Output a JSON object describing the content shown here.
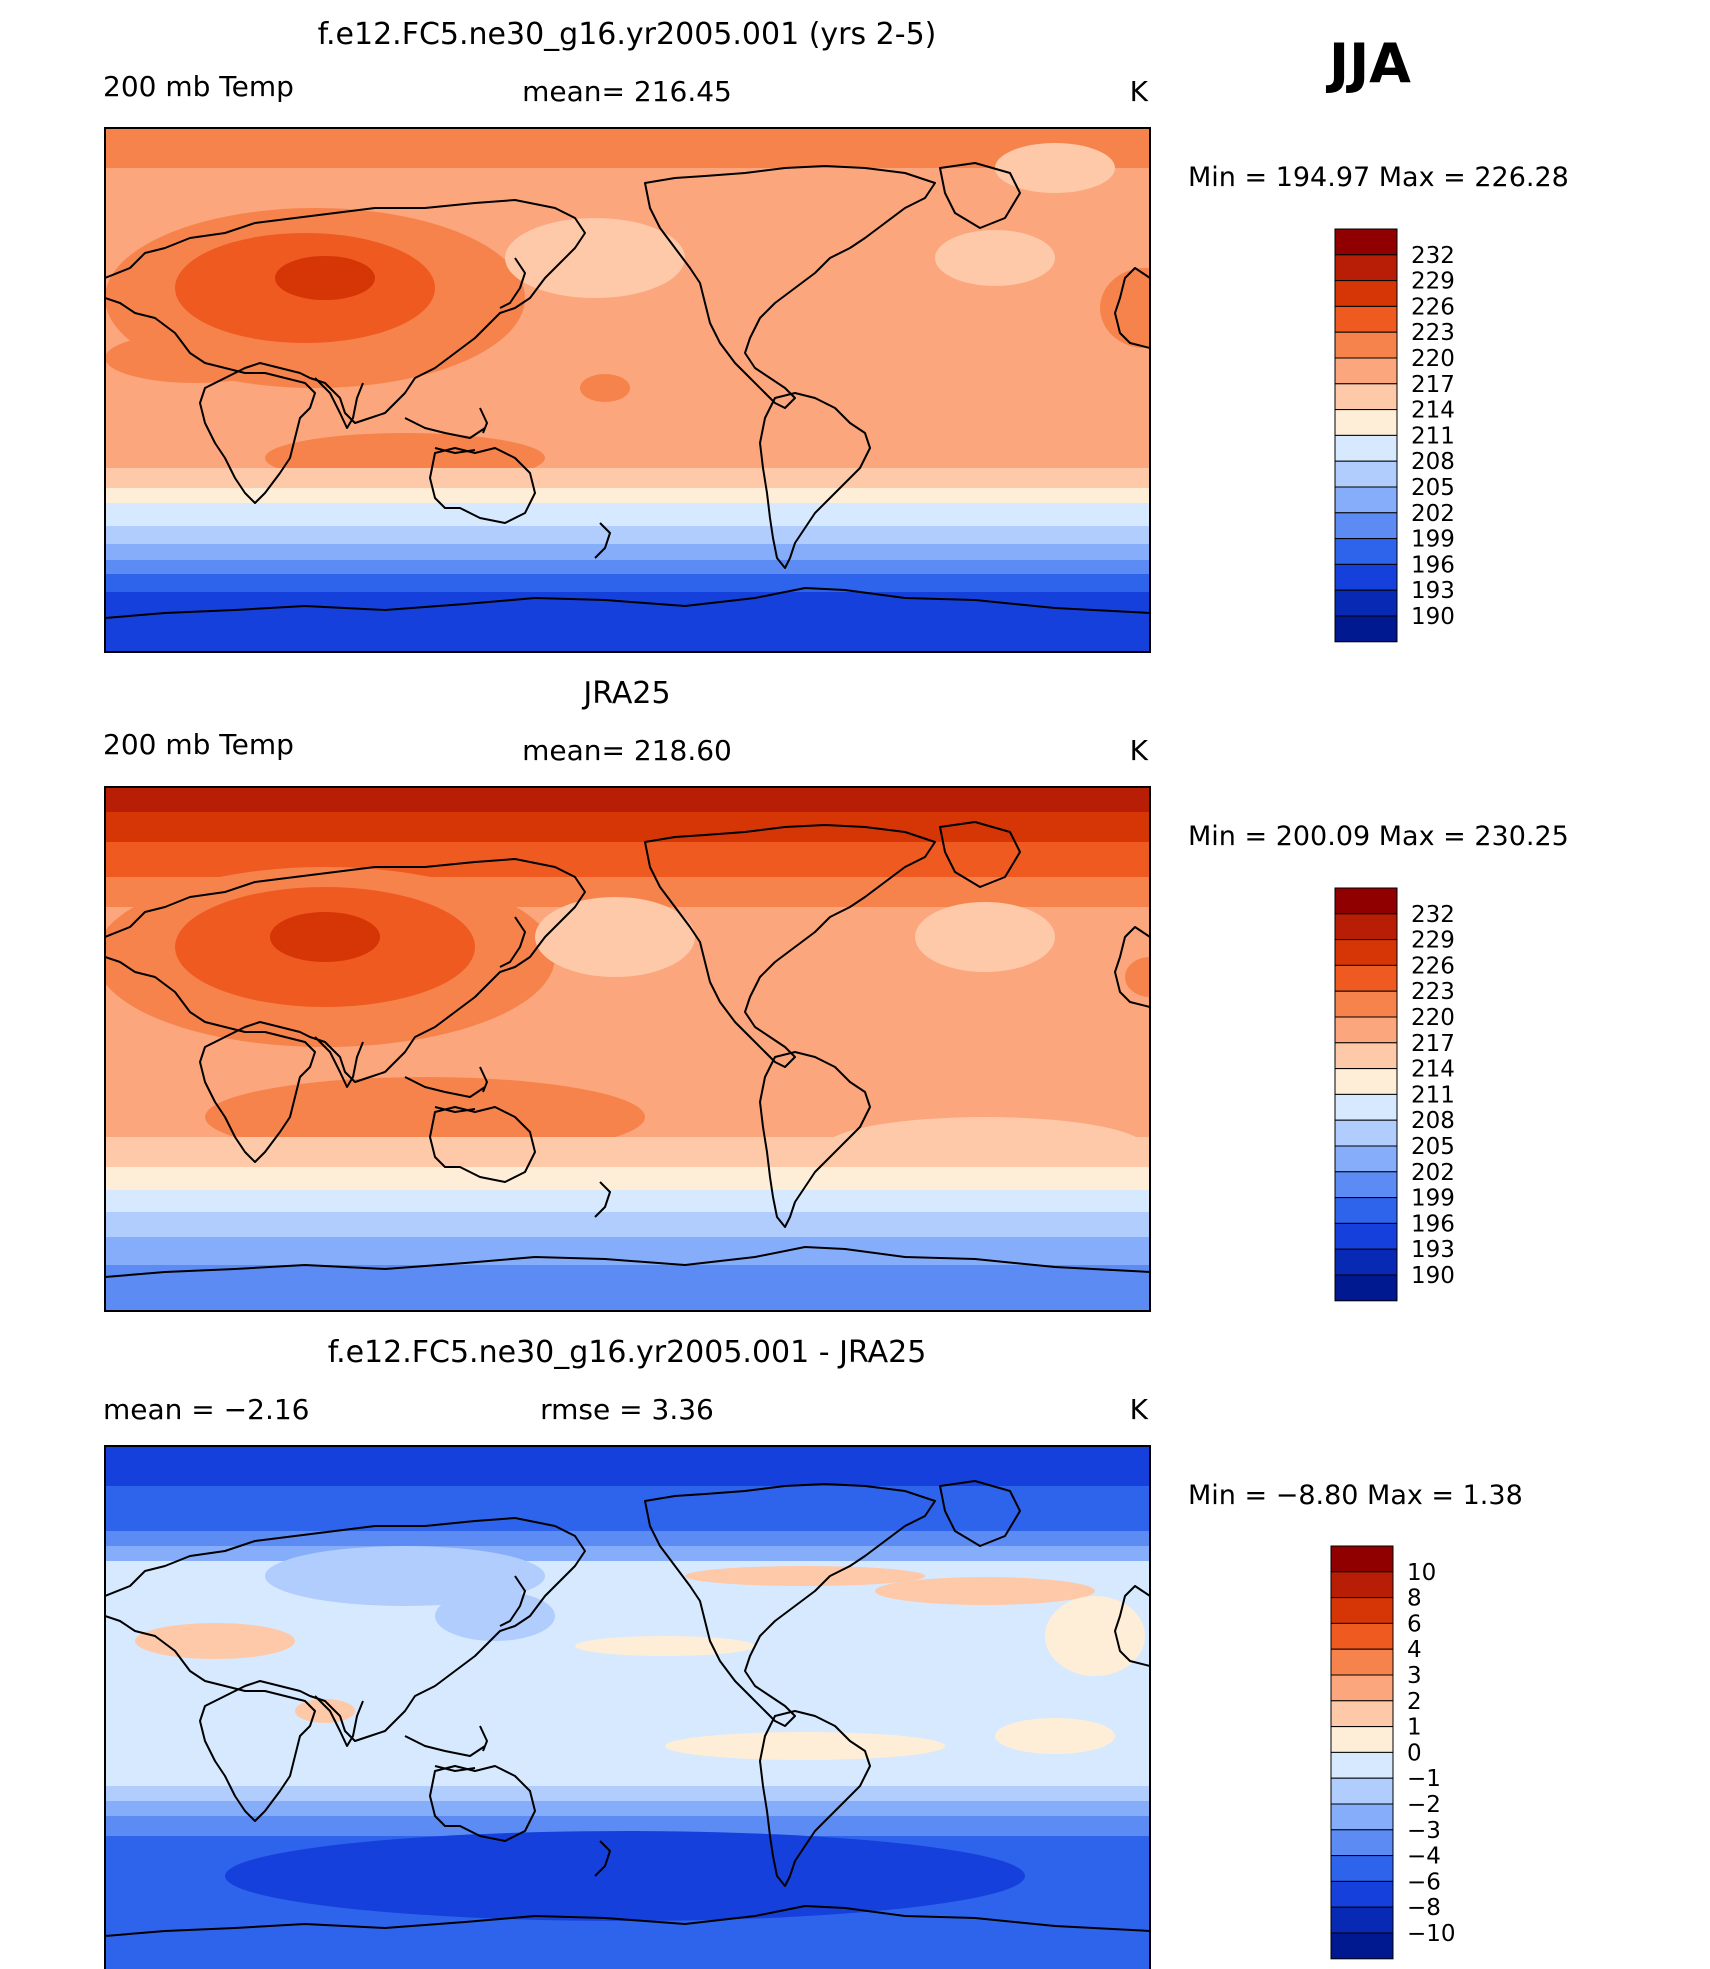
{
  "season": "JJA",
  "colors": {
    "temp_scale": [
      "#900000",
      "#b71e05",
      "#d63505",
      "#ef5a20",
      "#f7834c",
      "#fba67c",
      "#fdc9a8",
      "#feeed8",
      "#d6e9fe",
      "#b0cdfd",
      "#86adfa",
      "#5c8cf3",
      "#2e63ec",
      "#1640dc",
      "#0829b4",
      "#001890"
    ],
    "diff_scale": [
      "#900000",
      "#b71e05",
      "#d63505",
      "#ef5a20",
      "#f7834c",
      "#fba67c",
      "#fdc9a8",
      "#feeed8",
      "#d6e9fe",
      "#b0cdfd",
      "#86adfa",
      "#5c8cf3",
      "#2e63ec",
      "#1640dc",
      "#0829b4",
      "#001890"
    ]
  },
  "panels": [
    {
      "title": "f.e12.FC5.ne30_g16.yr2005.001 (yrs 2-5)",
      "left_label": "200 mb Temp",
      "center_label": "mean=  216.45",
      "units": "K",
      "minmax": "Min  =  194.97  Max  =  226.28",
      "legend_labels": [
        "232",
        "229",
        "226",
        "223",
        "220",
        "217",
        "214",
        "211",
        "208",
        "205",
        "202",
        "199",
        "196",
        "193",
        "190"
      ]
    },
    {
      "title": "JRA25",
      "left_label": "200 mb Temp",
      "center_label": "mean=  218.60",
      "units": "K",
      "minmax": "Min  =  200.09  Max  =  230.25",
      "legend_labels": [
        "232",
        "229",
        "226",
        "223",
        "220",
        "217",
        "214",
        "211",
        "208",
        "205",
        "202",
        "199",
        "196",
        "193",
        "190"
      ]
    },
    {
      "title": "f.e12.FC5.ne30_g16.yr2005.001 - JRA25",
      "left_label": "mean =    −2.16",
      "center_label": "rmse =     3.36",
      "units": "K",
      "minmax": "Min  =    −8.80  Max  =     1.38",
      "legend_labels": [
        "10",
        "8",
        "6",
        "4",
        "3",
        "2",
        "1",
        "0",
        "−1",
        "−2",
        "−3",
        "−4",
        "−6",
        "−8",
        "−10"
      ]
    }
  ]
}
